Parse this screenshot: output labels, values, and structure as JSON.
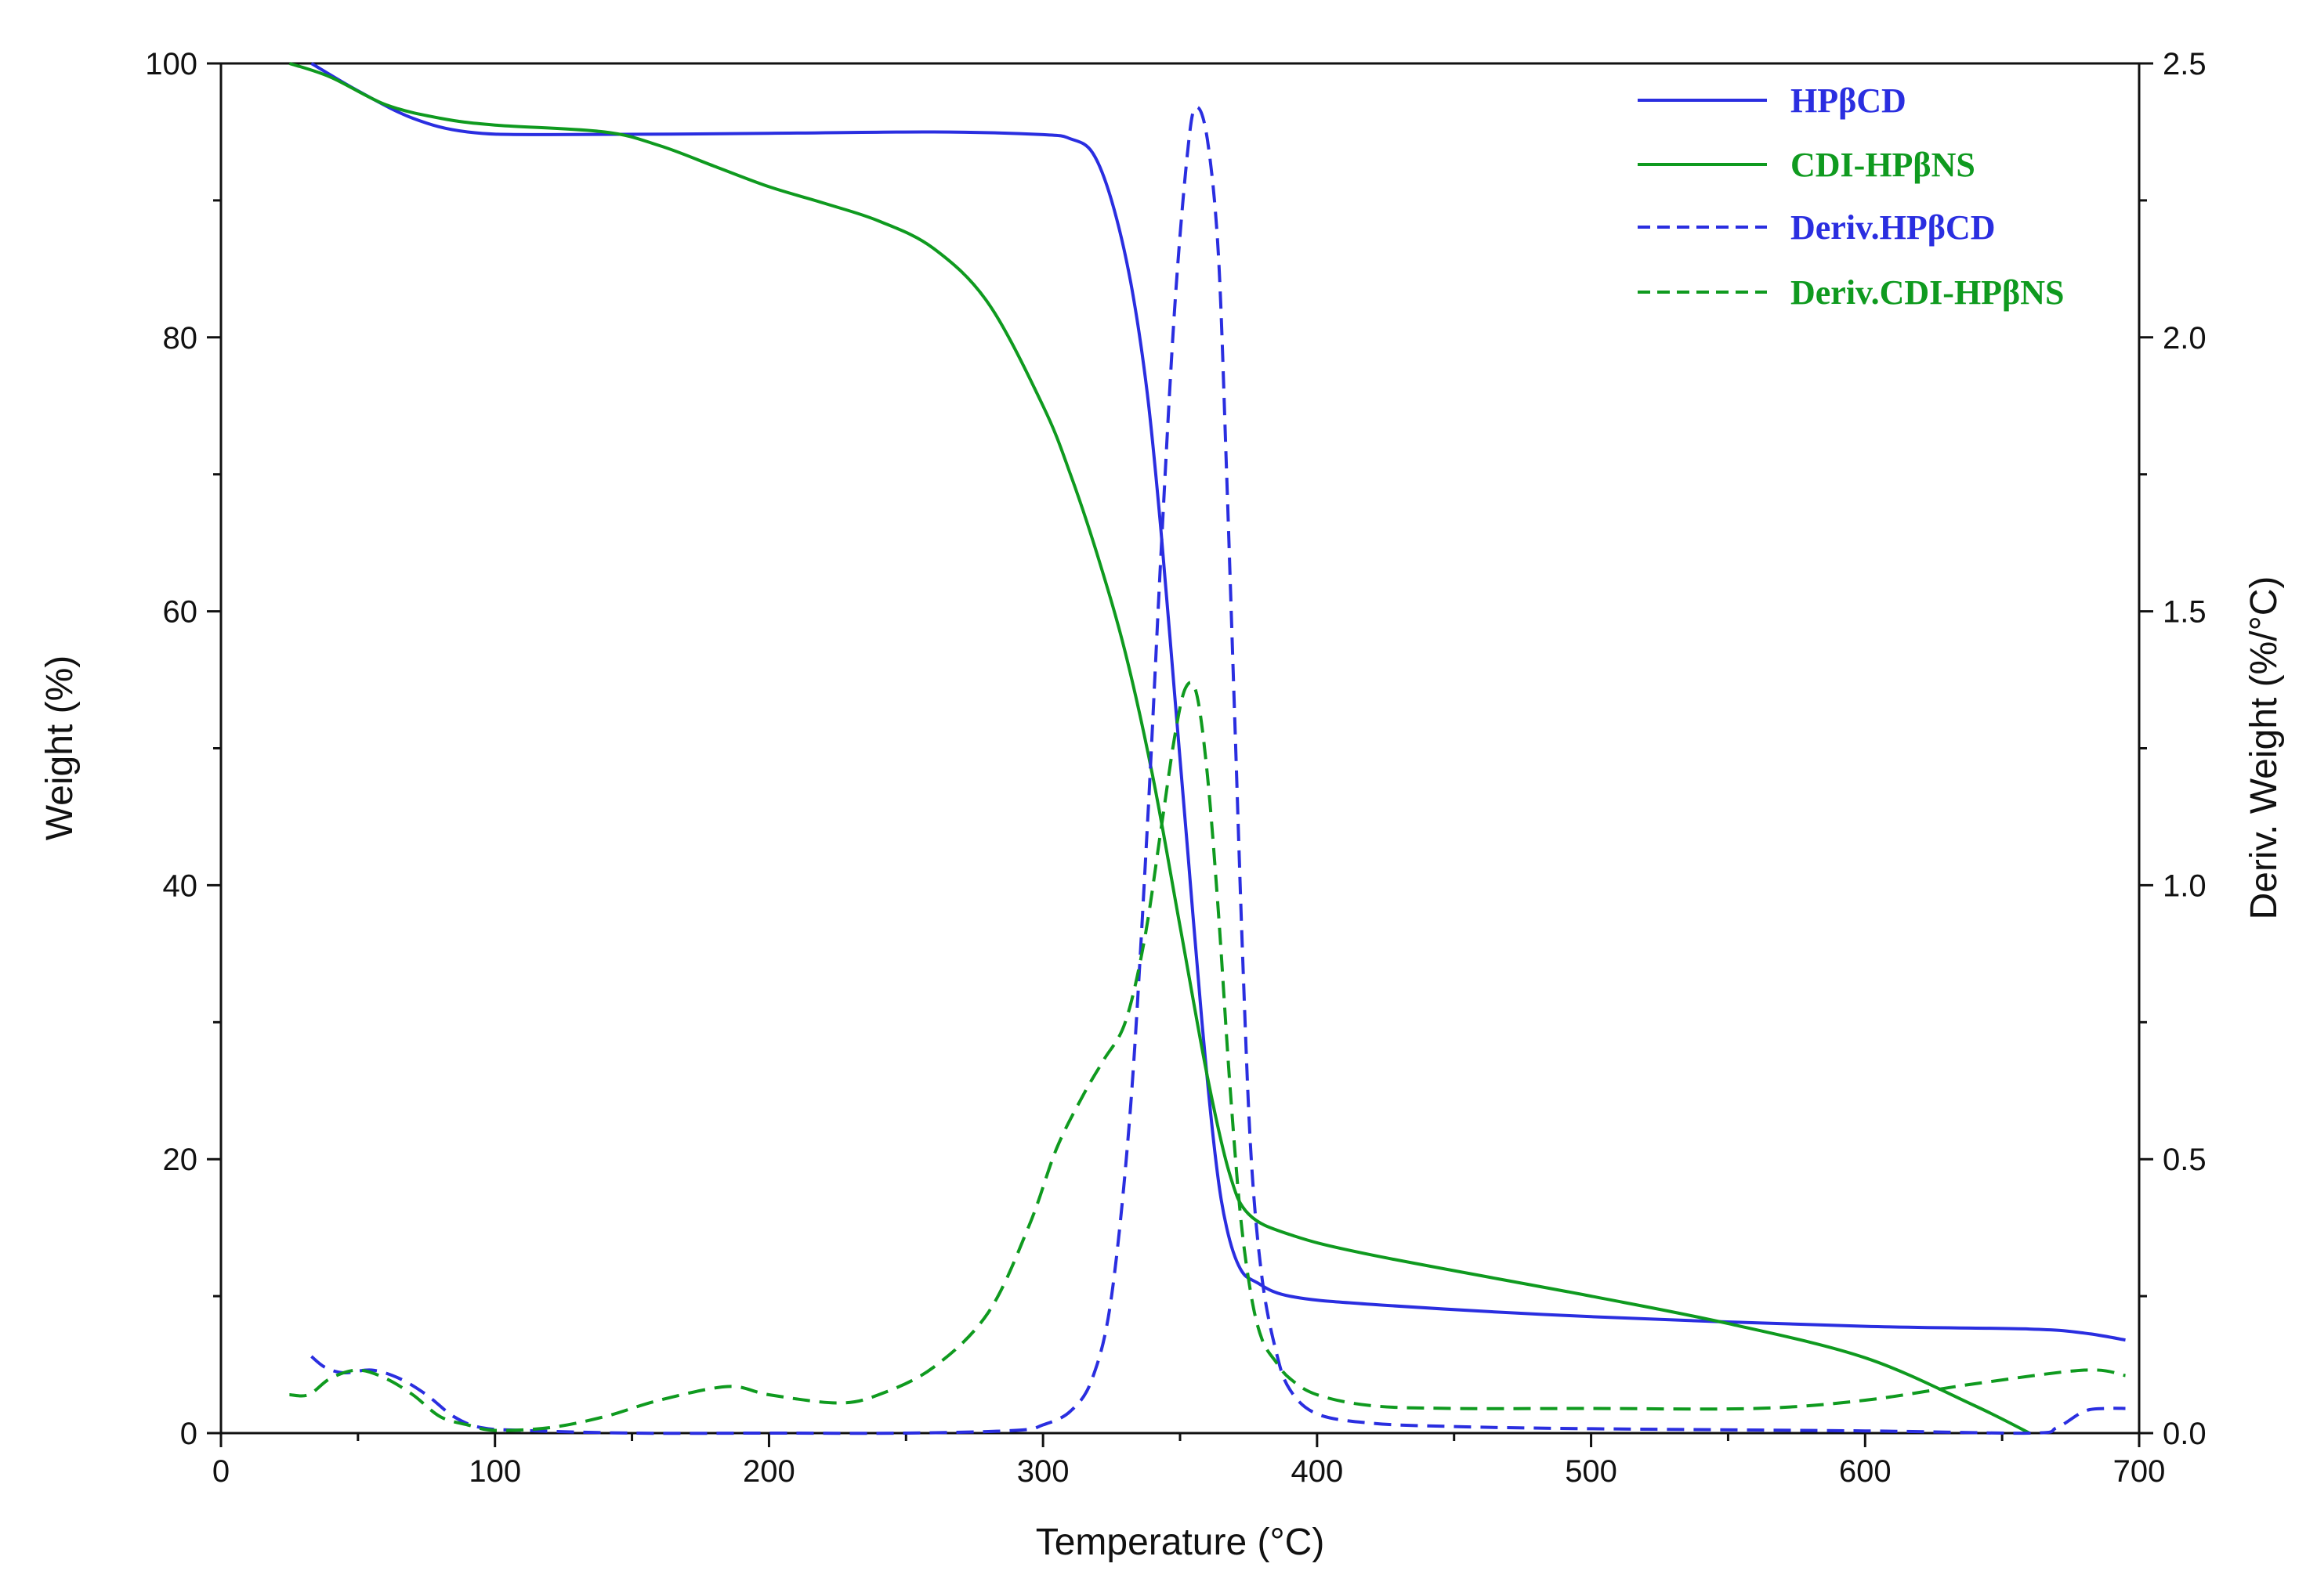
{
  "chart_data": {
    "type": "line",
    "title": "",
    "xlabel": "Temperature (°C)",
    "ylabel": "Weight (%)",
    "y2label": "Deriv. Weight (%/°C)",
    "xlim": [
      0,
      700
    ],
    "ylim": [
      0,
      100
    ],
    "y2lim": [
      0,
      2.5
    ],
    "xticks": [
      0,
      100,
      200,
      300,
      400,
      500,
      600,
      700
    ],
    "yticks": [
      0,
      20,
      40,
      60,
      80,
      100
    ],
    "y2ticks": [
      0.0,
      0.5,
      1.0,
      1.5,
      2.0,
      2.5
    ],
    "xtick_labels": [
      "0",
      "100",
      "200",
      "300",
      "400",
      "500",
      "600",
      "700"
    ],
    "ytick_labels": [
      "0",
      "20",
      "40",
      "60",
      "80",
      "100"
    ],
    "y2tick_labels": [
      "0.0",
      "0.5",
      "1.0",
      "1.5",
      "2.0",
      "2.5"
    ],
    "grid": false,
    "legend_position": "top-right",
    "colors": {
      "blue": "#2a2ee0",
      "green": "#0f9a1f"
    },
    "series": [
      {
        "name": "HPβCD",
        "axis": "left",
        "style": "solid",
        "color": "#2a2ee0",
        "x": [
          33,
          50,
          70,
          90,
          120,
          200,
          260,
          300,
          310,
          318,
          325,
          332,
          338,
          343,
          348,
          353,
          358,
          363,
          367,
          372,
          378,
          390,
          420,
          500,
          600,
          660,
          680,
          695
        ],
        "y": [
          100,
          98,
          96,
          95,
          94.8,
          94.9,
          95,
          94.8,
          94.5,
          93.5,
          90,
          84,
          76,
          66,
          54,
          42,
          30,
          20,
          15,
          12,
          11,
          10,
          9.4,
          8.5,
          7.8,
          7.6,
          7.3,
          6.8
        ]
      },
      {
        "name": "CDI-HPβNS",
        "axis": "left",
        "style": "solid",
        "color": "#0f9a1f",
        "x": [
          25,
          40,
          60,
          80,
          100,
          140,
          160,
          180,
          200,
          220,
          240,
          260,
          280,
          300,
          310,
          320,
          330,
          340,
          350,
          360,
          368,
          375,
          390,
          420,
          500,
          550,
          600,
          640,
          660
        ],
        "y": [
          100,
          99,
          97,
          96,
          95.5,
          95,
          94,
          92.5,
          91,
          89.8,
          88.5,
          86.5,
          82.5,
          75,
          70,
          64,
          57,
          48,
          37,
          26,
          19,
          16,
          14.5,
          13,
          10,
          8,
          5.5,
          2,
          0
        ]
      },
      {
        "name": "Deriv.HPβCD",
        "axis": "right",
        "style": "dashed",
        "color": "#2a2ee0",
        "x": [
          33,
          38,
          45,
          55,
          65,
          75,
          85,
          95,
          110,
          150,
          200,
          250,
          290,
          300,
          310,
          318,
          325,
          332,
          338,
          343,
          348,
          353,
          356,
          360,
          364,
          367,
          370,
          373,
          376,
          380,
          385,
          390,
          400,
          420,
          450,
          500,
          600,
          660,
          670,
          680,
          688,
          695
        ],
        "y": [
          0.14,
          0.12,
          0.11,
          0.115,
          0.1,
          0.07,
          0.03,
          0.01,
          0.005,
          0.0,
          0.0,
          0.0,
          0.005,
          0.015,
          0.04,
          0.1,
          0.25,
          0.6,
          1.1,
          1.6,
          2.05,
          2.35,
          2.42,
          2.36,
          2.15,
          1.75,
          1.3,
          0.85,
          0.5,
          0.28,
          0.15,
          0.08,
          0.035,
          0.018,
          0.012,
          0.008,
          0.004,
          0.0,
          0.01,
          0.04,
          0.045,
          0.045
        ]
      },
      {
        "name": "Deriv.CDI-HPβNS",
        "axis": "right",
        "style": "dashed",
        "color": "#0f9a1f",
        "x": [
          25,
          32,
          40,
          50,
          60,
          70,
          80,
          90,
          100,
          120,
          140,
          160,
          185,
          200,
          225,
          240,
          260,
          280,
          295,
          305,
          315,
          322,
          330,
          337,
          343,
          348,
          352,
          356,
          360,
          364,
          368,
          372,
          376,
          380,
          385,
          390,
          400,
          420,
          450,
          500,
          560,
          600,
          640,
          680,
          695
        ],
        "y": [
          0.07,
          0.07,
          0.1,
          0.115,
          0.1,
          0.07,
          0.03,
          0.015,
          0.005,
          0.01,
          0.03,
          0.06,
          0.085,
          0.07,
          0.055,
          0.07,
          0.12,
          0.22,
          0.38,
          0.52,
          0.62,
          0.68,
          0.75,
          0.9,
          1.1,
          1.27,
          1.36,
          1.35,
          1.2,
          0.95,
          0.65,
          0.4,
          0.25,
          0.17,
          0.13,
          0.1,
          0.07,
          0.05,
          0.045,
          0.045,
          0.045,
          0.06,
          0.09,
          0.115,
          0.105
        ]
      }
    ]
  }
}
